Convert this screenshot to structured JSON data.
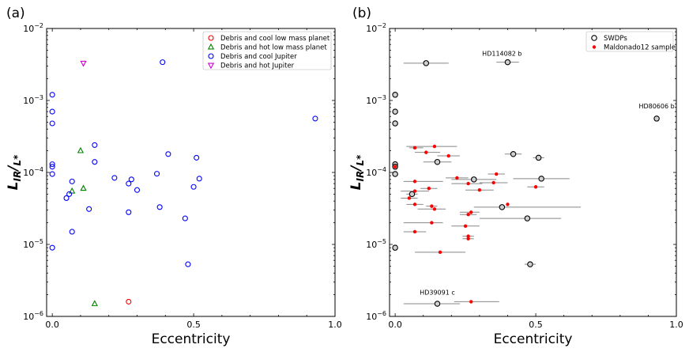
{
  "chart_data": [
    {
      "panel": "(a)",
      "type": "scatter",
      "xlabel": "Eccentricity",
      "ylabel": "LIR/L*",
      "xlim": [
        -0.02,
        1.0
      ],
      "ylim": [
        1e-06,
        0.01
      ],
      "yscale": "log",
      "xticks": [
        0.0,
        0.5,
        1.0
      ],
      "xtick_labels": [
        "0.0",
        "0.5",
        "1.0"
      ],
      "yticks": [
        1e-06,
        1e-05,
        0.0001,
        0.001,
        0.01
      ],
      "legend_position": "top-right",
      "series": [
        {
          "name": "Debris and cool low mass planet",
          "marker": "circle",
          "color": "#ff0000",
          "points": [
            [
              0.27,
              1.6e-06
            ]
          ]
        },
        {
          "name": "Debris and hot low mass planet",
          "marker": "triangle-up",
          "color": "#008000",
          "points": [
            [
              0.1,
              0.0002
            ],
            [
              0.07,
              5.5e-05
            ],
            [
              0.11,
              6e-05
            ],
            [
              0.15,
              1.5e-06
            ]
          ]
        },
        {
          "name": "Debris and cool Jupiter",
          "marker": "circle",
          "color": "#0000ff",
          "points": [
            [
              0.0,
              0.0012
            ],
            [
              0.0,
              0.0007
            ],
            [
              0.0,
              0.00048
            ],
            [
              0.0,
              0.00013
            ],
            [
              0.0,
              0.00012
            ],
            [
              0.0,
              9.5e-05
            ],
            [
              0.0,
              9e-06
            ],
            [
              0.05,
              4.4e-05
            ],
            [
              0.06,
              5e-05
            ],
            [
              0.07,
              7.5e-05
            ],
            [
              0.07,
              1.5e-05
            ],
            [
              0.13,
              3.1e-05
            ],
            [
              0.15,
              0.00024
            ],
            [
              0.15,
              0.00014
            ],
            [
              0.22,
              8.4e-05
            ],
            [
              0.27,
              7e-05
            ],
            [
              0.28,
              8e-05
            ],
            [
              0.27,
              2.8e-05
            ],
            [
              0.3,
              5.7e-05
            ],
            [
              0.37,
              9.6e-05
            ],
            [
              0.38,
              3.3e-05
            ],
            [
              0.39,
              0.0034
            ],
            [
              0.41,
              0.00018
            ],
            [
              0.47,
              2.3e-05
            ],
            [
              0.48,
              5.3e-06
            ],
            [
              0.5,
              6.3e-05
            ],
            [
              0.51,
              0.00016
            ],
            [
              0.52,
              8.2e-05
            ],
            [
              0.93,
              0.00056
            ]
          ]
        },
        {
          "name": "Debris and hot Jupiter",
          "marker": "triangle-down",
          "color": "#cc00cc",
          "points": [
            [
              0.11,
              0.0033
            ]
          ]
        }
      ]
    },
    {
      "panel": "(b)",
      "type": "scatter",
      "xlabel": "Eccentricity",
      "ylabel": "LIR/L*",
      "xlim": [
        -0.02,
        1.0
      ],
      "ylim": [
        1e-06,
        0.01
      ],
      "yscale": "log",
      "xticks": [
        0.0,
        0.5,
        1.0
      ],
      "xtick_labels": [
        "0.0",
        "0.5",
        "1.0"
      ],
      "yticks": [
        1e-06,
        1e-05,
        0.0001,
        0.001,
        0.01
      ],
      "legend_position": "top-right",
      "series": [
        {
          "name": "SWDPs",
          "marker": "open-circle",
          "color": "#000000",
          "points": [
            {
              "x": 0.11,
              "y": 0.0033,
              "xerr": [
                0.08,
                0.08
              ]
            },
            {
              "x": 0.4,
              "y": 0.0034,
              "xerr": [
                0.04,
                0.04
              ]
            },
            {
              "x": 0.93,
              "y": 0.00056,
              "xerr": [
                0,
                0
              ]
            },
            {
              "x": 0.0,
              "y": 0.0012,
              "xerr": [
                0,
                0
              ]
            },
            {
              "x": 0.0,
              "y": 0.0007,
              "xerr": [
                0,
                0
              ]
            },
            {
              "x": 0.0,
              "y": 0.00048,
              "xerr": [
                0,
                0
              ]
            },
            {
              "x": 0.0,
              "y": 0.00013,
              "xerr": [
                0,
                0
              ]
            },
            {
              "x": 0.0,
              "y": 0.00012,
              "xerr": [
                0,
                0
              ]
            },
            {
              "x": 0.0,
              "y": 9.5e-05,
              "xerr": [
                0,
                0
              ]
            },
            {
              "x": 0.0,
              "y": 9e-06,
              "xerr": [
                0,
                0
              ]
            },
            {
              "x": 0.15,
              "y": 0.00014,
              "xerr": [
                0.05,
                0.05
              ]
            },
            {
              "x": 0.42,
              "y": 0.00018,
              "xerr": [
                0.03,
                0.03
              ]
            },
            {
              "x": 0.51,
              "y": 0.00016,
              "xerr": [
                0.02,
                0.02
              ]
            },
            {
              "x": 0.28,
              "y": 8e-05,
              "xerr": [
                0.08,
                0.08
              ]
            },
            {
              "x": 0.52,
              "y": 8.2e-05,
              "xerr": [
                0.1,
                0.1
              ]
            },
            {
              "x": 0.38,
              "y": 3.3e-05,
              "xerr": [
                0.1,
                0.28
              ]
            },
            {
              "x": 0.47,
              "y": 2.3e-05,
              "xerr": [
                0.17,
                0.12
              ]
            },
            {
              "x": 0.48,
              "y": 5.3e-06,
              "xerr": [
                0.02,
                0.02
              ]
            },
            {
              "x": 0.15,
              "y": 1.5e-06,
              "xerr": [
                0.12,
                0.08
              ]
            },
            {
              "x": 0.06,
              "y": 5e-05,
              "xerr": [
                0.02,
                0.02
              ]
            }
          ]
        },
        {
          "name": "Maldonado12 sample",
          "marker": "filled-circle",
          "color": "#ff0000",
          "points": [
            {
              "x": 0.0,
              "y": 0.00012,
              "xerr": [
                0,
                0
              ]
            },
            {
              "x": 0.07,
              "y": 0.00022,
              "xerr": [
                0.02,
                0.03
              ]
            },
            {
              "x": 0.14,
              "y": 0.00023,
              "xerr": [
                0.1,
                0.08
              ]
            },
            {
              "x": 0.11,
              "y": 0.00019,
              "xerr": [
                0.04,
                0.05
              ]
            },
            {
              "x": 0.19,
              "y": 0.00017,
              "xerr": [
                0.04,
                0.04
              ]
            },
            {
              "x": 0.07,
              "y": 7.5e-05,
              "xerr": [
                0.04,
                0.1
              ]
            },
            {
              "x": 0.22,
              "y": 8.4e-05,
              "xerr": [
                0.04,
                0.04
              ]
            },
            {
              "x": 0.36,
              "y": 9.5e-05,
              "xerr": [
                0.03,
                0.03
              ]
            },
            {
              "x": 0.26,
              "y": 7e-05,
              "xerr": [
                0.06,
                0.05
              ]
            },
            {
              "x": 0.35,
              "y": 7.2e-05,
              "xerr": [
                0.05,
                0.05
              ]
            },
            {
              "x": 0.5,
              "y": 6.3e-05,
              "xerr": [
                0.03,
                0.03
              ]
            },
            {
              "x": 0.07,
              "y": 5.5e-05,
              "xerr": [
                0.05,
                0.05
              ]
            },
            {
              "x": 0.12,
              "y": 6e-05,
              "xerr": [
                0.03,
                0.03
              ]
            },
            {
              "x": 0.3,
              "y": 5.7e-05,
              "xerr": [
                0.05,
                0.05
              ]
            },
            {
              "x": 0.05,
              "y": 4.4e-05,
              "xerr": [
                0.03,
                0.03
              ]
            },
            {
              "x": 0.07,
              "y": 3.6e-05,
              "xerr": [
                0.03,
                0.03
              ]
            },
            {
              "x": 0.14,
              "y": 3.1e-05,
              "xerr": [
                0.06,
                0.04
              ]
            },
            {
              "x": 0.13,
              "y": 3.4e-05,
              "xerr": [
                0.02,
                0.02
              ]
            },
            {
              "x": 0.4,
              "y": 3.6e-05,
              "xerr": [
                0,
                0
              ]
            },
            {
              "x": 0.27,
              "y": 2.8e-05,
              "xerr": [
                0.04,
                0.03
              ]
            },
            {
              "x": 0.26,
              "y": 2.6e-05,
              "xerr": [
                0.03,
                0.03
              ]
            },
            {
              "x": 0.13,
              "y": 2e-05,
              "xerr": [
                0.1,
                0.04
              ]
            },
            {
              "x": 0.25,
              "y": 1.8e-05,
              "xerr": [
                0.05,
                0.05
              ]
            },
            {
              "x": 0.07,
              "y": 1.5e-05,
              "xerr": [
                0.04,
                0.04
              ]
            },
            {
              "x": 0.26,
              "y": 1.3e-05,
              "xerr": [
                0.02,
                0.02
              ]
            },
            {
              "x": 0.26,
              "y": 1.2e-05,
              "xerr": [
                0.02,
                0.02
              ]
            },
            {
              "x": 0.16,
              "y": 7.8e-06,
              "xerr": [
                0.09,
                0.09
              ]
            },
            {
              "x": 0.27,
              "y": 1.6e-06,
              "xerr": [
                0.06,
                0.1
              ]
            }
          ]
        }
      ],
      "annotations": [
        {
          "text": "HD114082 b",
          "x": 0.38,
          "y": 0.0042
        },
        {
          "text": "HD80606 b",
          "x": 0.93,
          "y": 0.00078
        },
        {
          "text": "HD39091 c",
          "x": 0.15,
          "y": 2e-06
        }
      ]
    }
  ]
}
